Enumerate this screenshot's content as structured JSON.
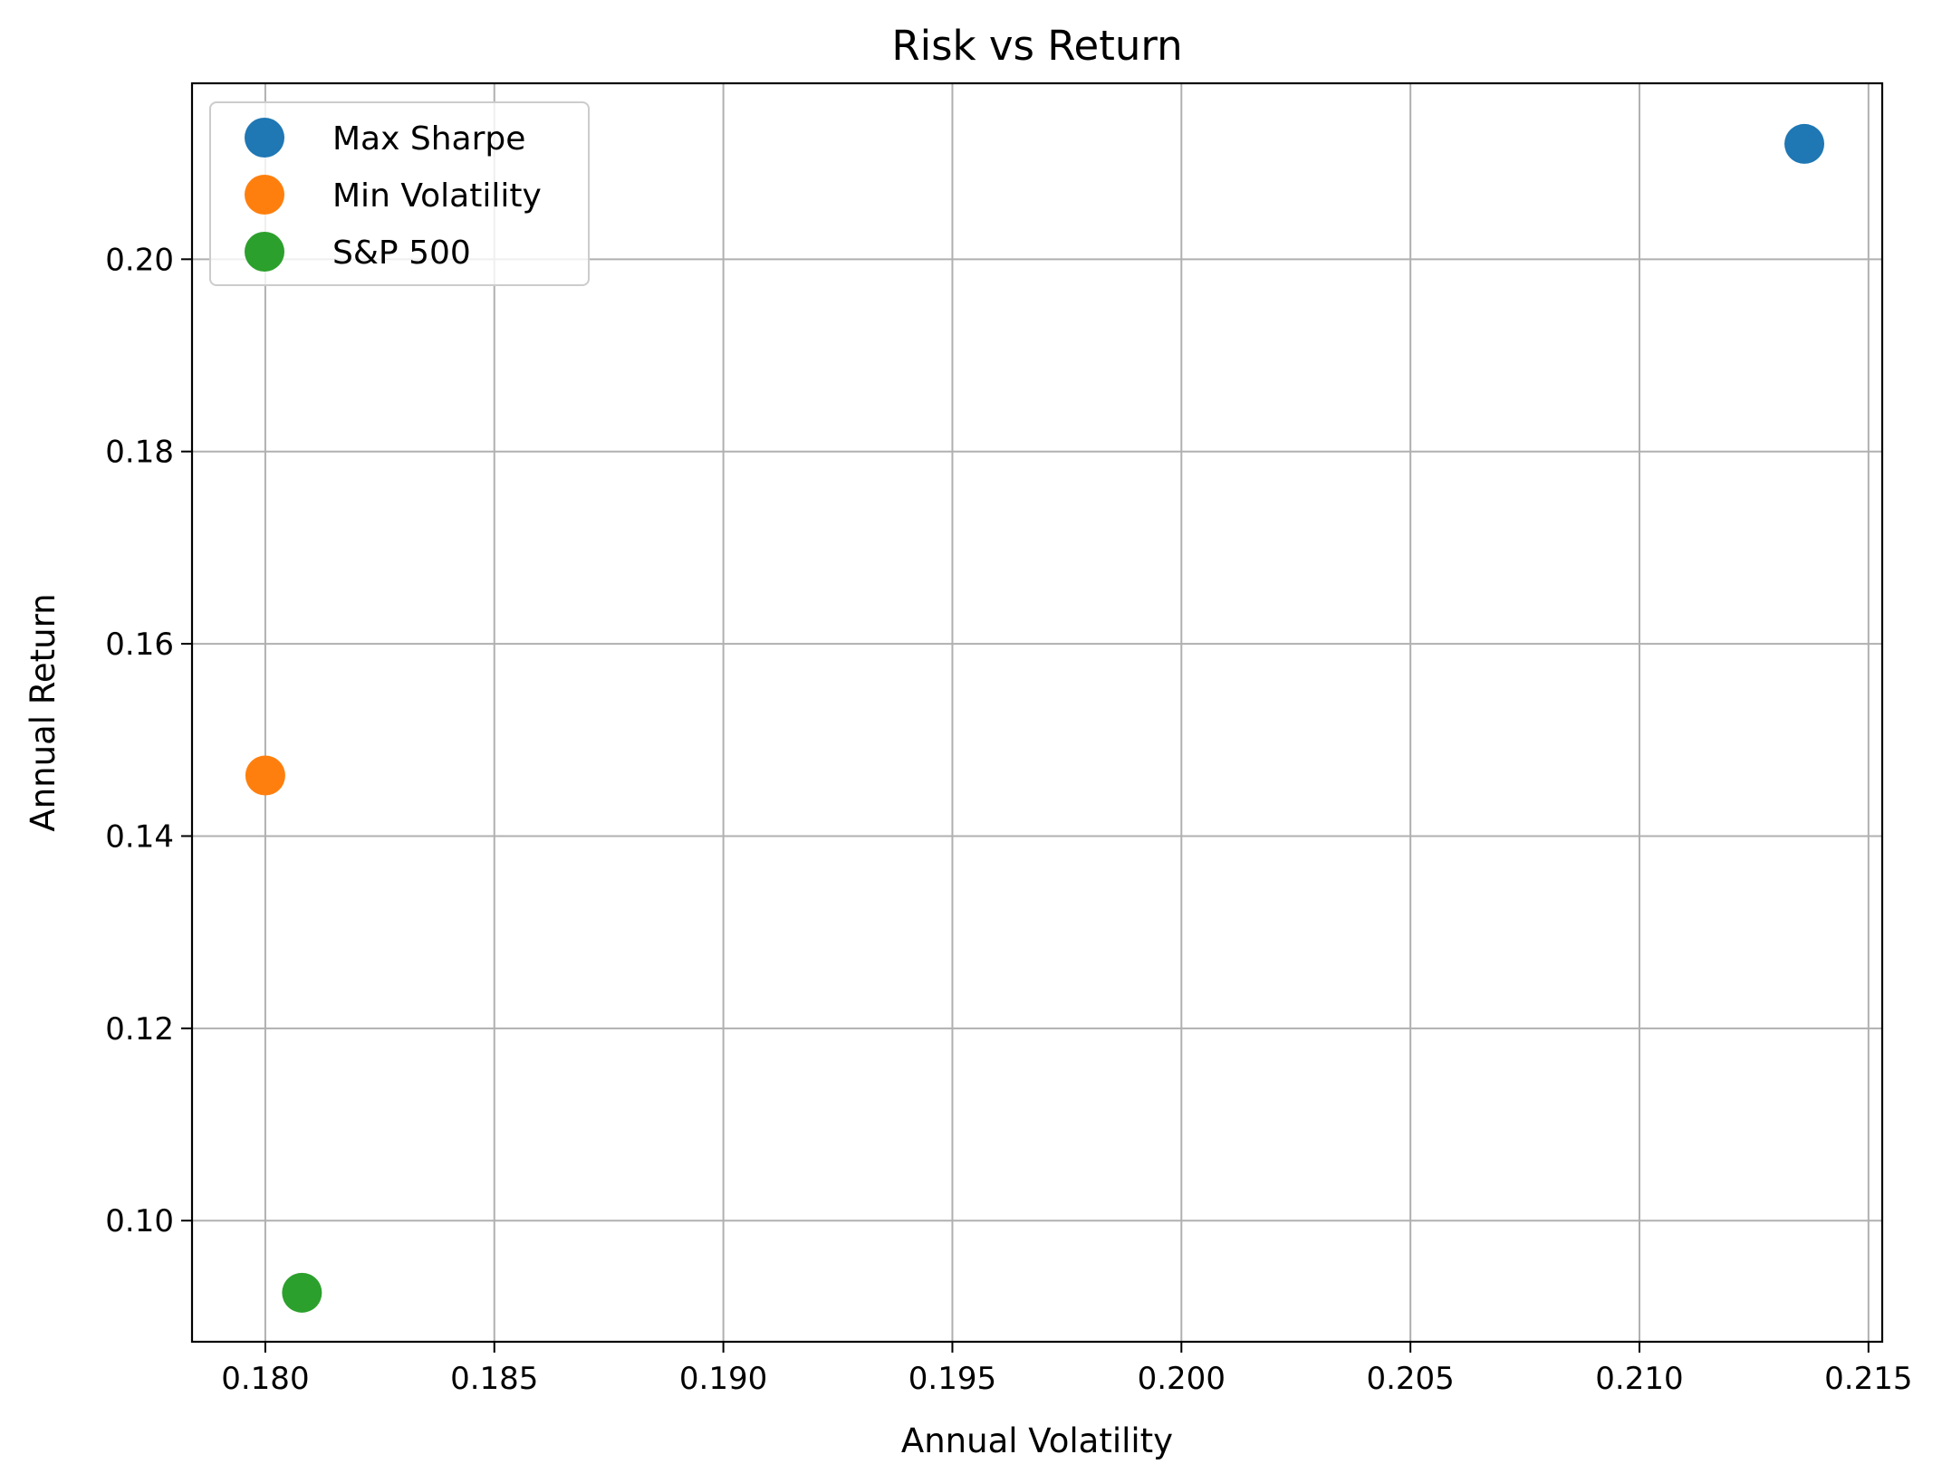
{
  "chart_data": {
    "type": "scatter",
    "title": "Risk vs Return",
    "xlabel": "Annual Volatility",
    "ylabel": "Annual Return",
    "xlim": [
      0.1784,
      0.2153
    ],
    "ylim": [
      0.0874,
      0.2183
    ],
    "xticks": [
      0.18,
      0.185,
      0.19,
      0.195,
      0.2,
      0.205,
      0.21,
      0.215
    ],
    "xtick_labels": [
      "0.180",
      "0.185",
      "0.190",
      "0.195",
      "0.200",
      "0.205",
      "0.210",
      "0.215"
    ],
    "yticks": [
      0.1,
      0.12,
      0.14,
      0.16,
      0.18,
      0.2
    ],
    "ytick_labels": [
      "0.10",
      "0.12",
      "0.14",
      "0.16",
      "0.18",
      "0.20"
    ],
    "grid": true,
    "legend_position": "upper-left",
    "series": [
      {
        "name": "Max Sharpe",
        "color": "#1f77b4",
        "points": [
          {
            "x": 0.2136,
            "y": 0.212
          }
        ]
      },
      {
        "name": "Min Volatility",
        "color": "#ff7f0e",
        "points": [
          {
            "x": 0.18,
            "y": 0.1463
          }
        ]
      },
      {
        "name": "S&P 500",
        "color": "#2ca02c",
        "points": [
          {
            "x": 0.1808,
            "y": 0.0925
          }
        ]
      }
    ]
  }
}
